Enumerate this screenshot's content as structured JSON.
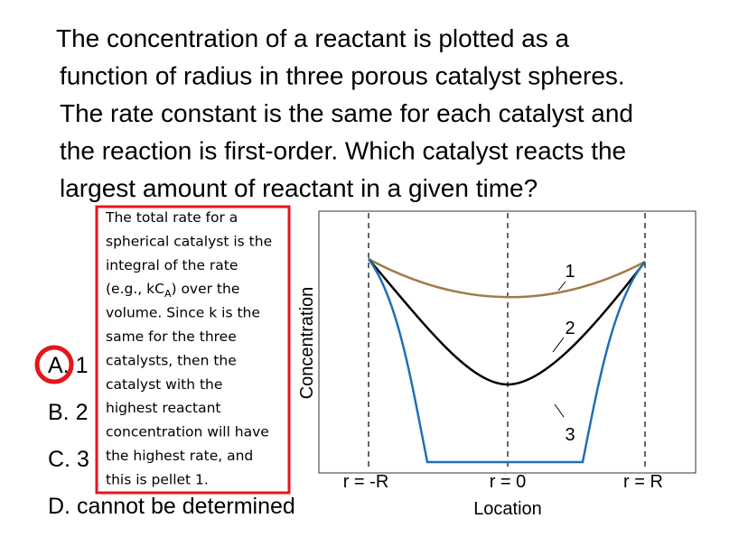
{
  "question": {
    "lines": [
      "The concentration of a reactant is plotted as a",
      "function of radius in three porous catalyst spheres.",
      "The rate constant is the same for each catalyst and",
      "the reaction is first-order. Which catalyst reacts the",
      "largest amount of reactant in a given time?"
    ]
  },
  "options": [
    "A. 1",
    "B. 2",
    "C. 3",
    "D. cannot be determined"
  ],
  "explanation": {
    "lines": [
      "The total rate for a",
      "spherical catalyst is the",
      "integral of the rate",
      [
        "(e.g., kC",
        "A",
        ") over the"
      ],
      "volume. Since k is the",
      "same for the three",
      "catalysts, then the",
      "catalyst with the",
      "highest reactant",
      "concentration will have",
      "the highest rate, and",
      "this is pellet 1."
    ]
  },
  "diagram": {
    "y_label": "Concentration",
    "x_label": "Location",
    "x_ticks": [
      "r = -R",
      "r = 0",
      "r = R"
    ],
    "curve_labels": [
      "1",
      "2",
      "3"
    ]
  }
}
